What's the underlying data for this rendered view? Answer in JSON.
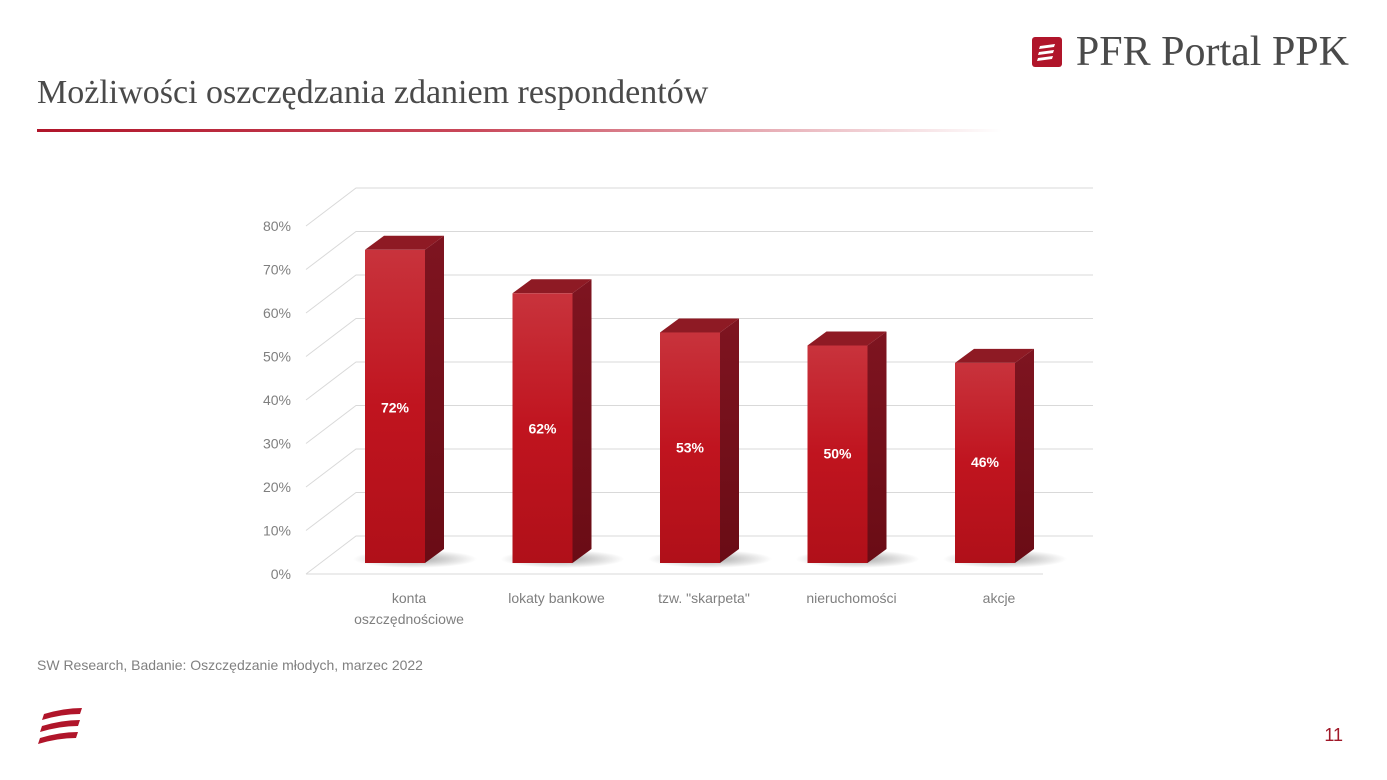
{
  "slide": {
    "title": "Możliwości oszczędzania zdaniem respondentów",
    "brand": "PFR Portal PPK",
    "source": "SW Research, Badanie: Oszczędzanie młodych, marzec 2022",
    "page_number": "11",
    "accent_color": "#b0152a"
  },
  "chart_data": {
    "type": "bar",
    "categories": [
      [
        "konta",
        "oszczędnościowe"
      ],
      [
        "lokaty bankowe"
      ],
      [
        "tzw. \"skarpeta\""
      ],
      [
        "nieruchomości"
      ],
      [
        "akcje"
      ]
    ],
    "values": [
      72,
      62,
      53,
      50,
      46
    ],
    "data_labels": [
      "72%",
      "62%",
      "53%",
      "50%",
      "46%"
    ],
    "yticks": [
      "0%",
      "10%",
      "20%",
      "30%",
      "40%",
      "50%",
      "60%",
      "70%",
      "80%"
    ],
    "ylim": [
      0,
      80
    ],
    "grid": true,
    "legend": "none",
    "style": "3d",
    "bar_color": "#c0141f"
  }
}
